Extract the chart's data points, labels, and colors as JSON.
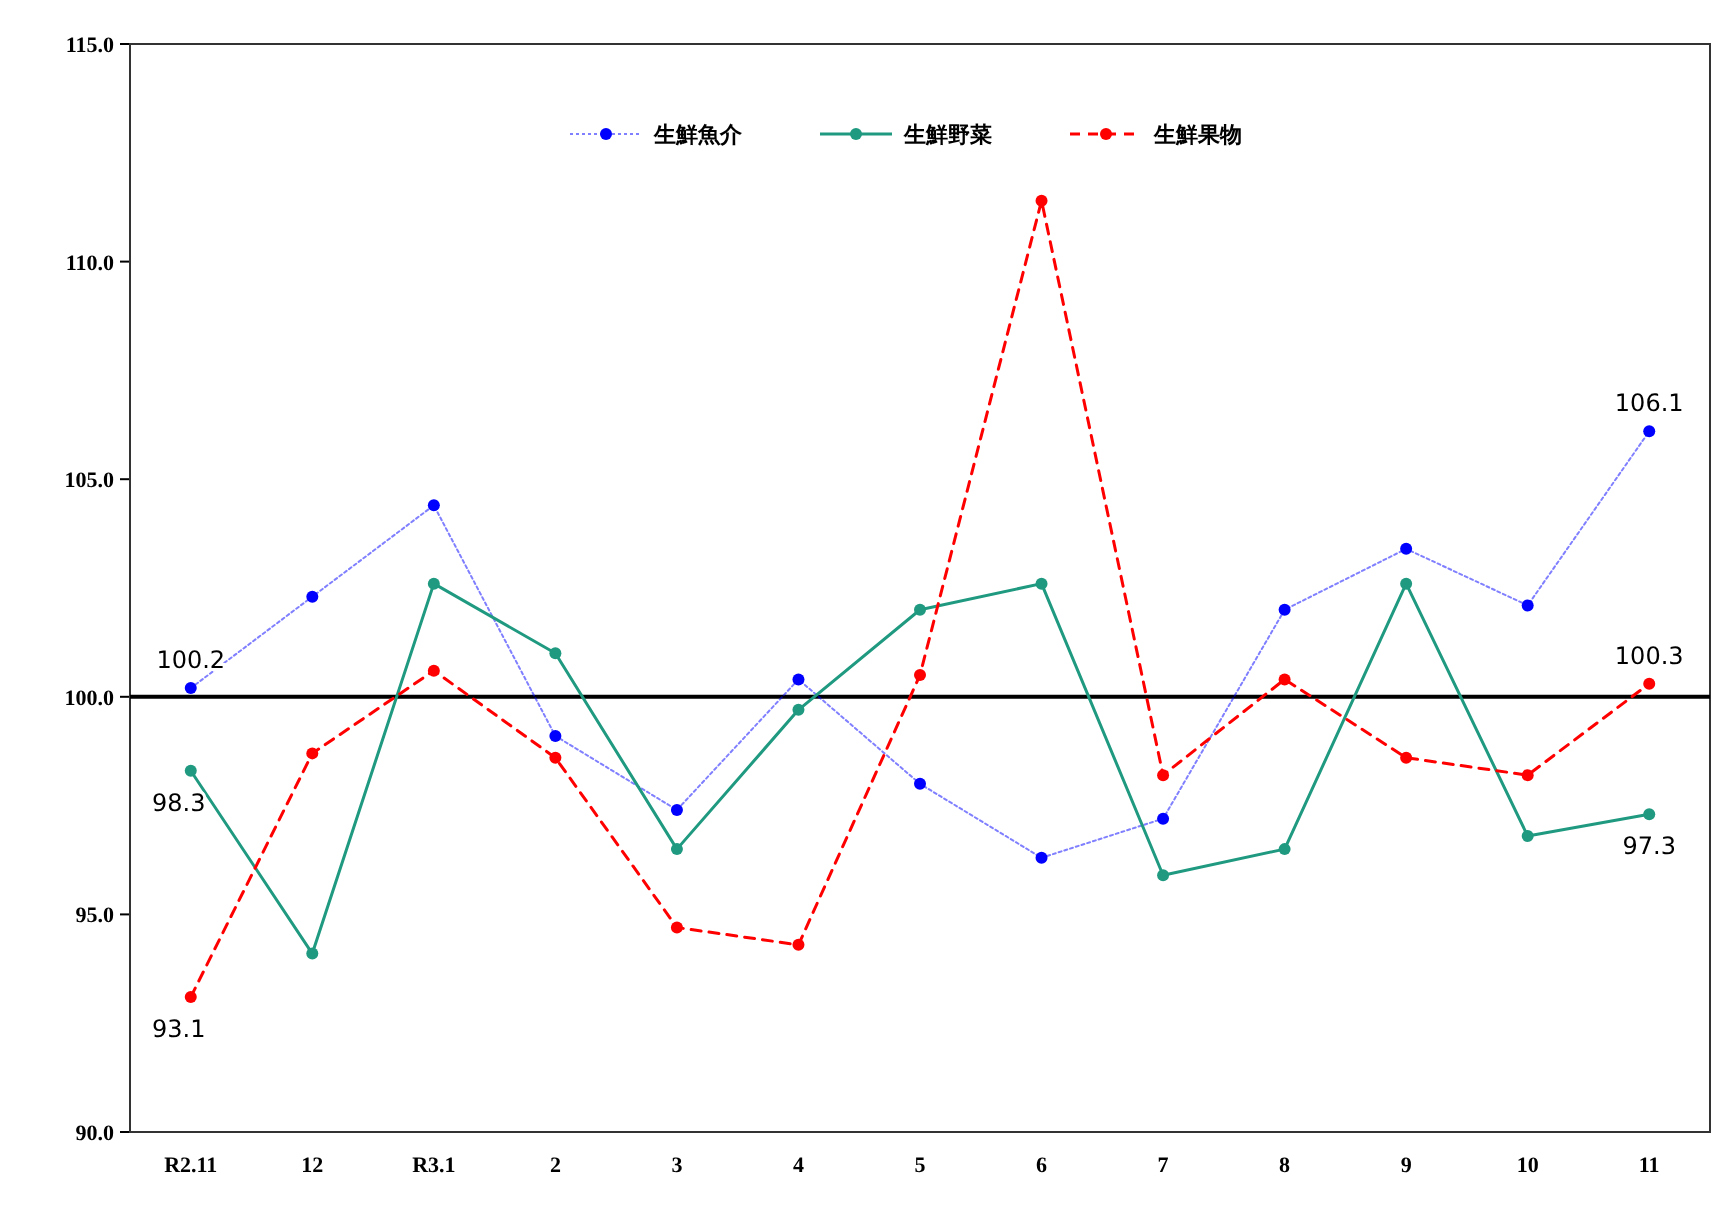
{
  "chart_data": {
    "type": "line",
    "categories": [
      "R2.11",
      "12",
      "R3.1",
      "2",
      "3",
      "4",
      "5",
      "6",
      "7",
      "8",
      "9",
      "10",
      "11"
    ],
    "series": [
      {
        "name": "生鮮魚介",
        "color": "#0000ff",
        "line_style": "dotted",
        "values": [
          100.2,
          102.3,
          104.4,
          99.1,
          97.4,
          100.4,
          98.0,
          96.3,
          97.2,
          102.0,
          103.4,
          102.1,
          106.1
        ],
        "value_labels": [
          "100.2",
          null,
          null,
          null,
          null,
          null,
          null,
          null,
          null,
          null,
          null,
          null,
          "106.1"
        ]
      },
      {
        "name": "生鮮野菜",
        "color": "#1f9a80",
        "line_style": "solid",
        "values": [
          98.3,
          94.1,
          102.6,
          101.0,
          96.5,
          99.7,
          102.0,
          102.6,
          95.9,
          96.5,
          102.6,
          96.8,
          97.3
        ],
        "value_labels": [
          "98.3",
          null,
          null,
          null,
          null,
          null,
          null,
          null,
          null,
          null,
          null,
          null,
          "97.3"
        ]
      },
      {
        "name": "生鮮果物",
        "color": "#ff0000",
        "line_style": "dashed",
        "values": [
          93.1,
          98.7,
          100.6,
          98.6,
          94.7,
          94.3,
          100.5,
          111.4,
          98.2,
          100.4,
          98.6,
          98.2,
          100.3
        ],
        "value_labels": [
          "93.1",
          null,
          null,
          null,
          null,
          null,
          null,
          null,
          null,
          null,
          null,
          null,
          "100.3"
        ]
      }
    ],
    "ylim": [
      90,
      115
    ],
    "yticks": [
      {
        "value": 90,
        "label": "90.0"
      },
      {
        "value": 95,
        "label": "95.0"
      },
      {
        "value": 100,
        "label": "100.0"
      },
      {
        "value": 105,
        "label": "105.0"
      },
      {
        "value": 110,
        "label": "110.0"
      },
      {
        "value": 115,
        "label": "115.0"
      }
    ],
    "ref_lines": [
      {
        "axis": "y",
        "value": 100,
        "color": "#000000"
      }
    ],
    "grid": false,
    "legend": "top",
    "marker": "circle"
  }
}
